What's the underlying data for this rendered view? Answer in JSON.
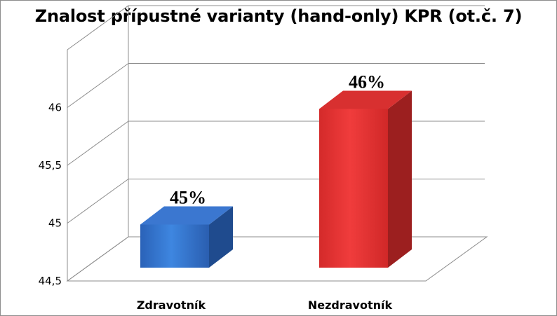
{
  "chart_data": {
    "type": "bar",
    "title": "Znalost přípustné varianty (hand-only) KPR (ot.č. 7)",
    "categories": [
      "Zdravotník",
      "Nezdravotník"
    ],
    "values": [
      45,
      46
    ],
    "data_labels": [
      "45%",
      "46%"
    ],
    "yticks": [
      "44,5",
      "45",
      "45,5",
      "46"
    ],
    "ylim": [
      44.5,
      46.5
    ],
    "grid": true,
    "legend": "none",
    "style": "3d-column",
    "colors": [
      "#2f6fc8",
      "#e83232"
    ]
  }
}
